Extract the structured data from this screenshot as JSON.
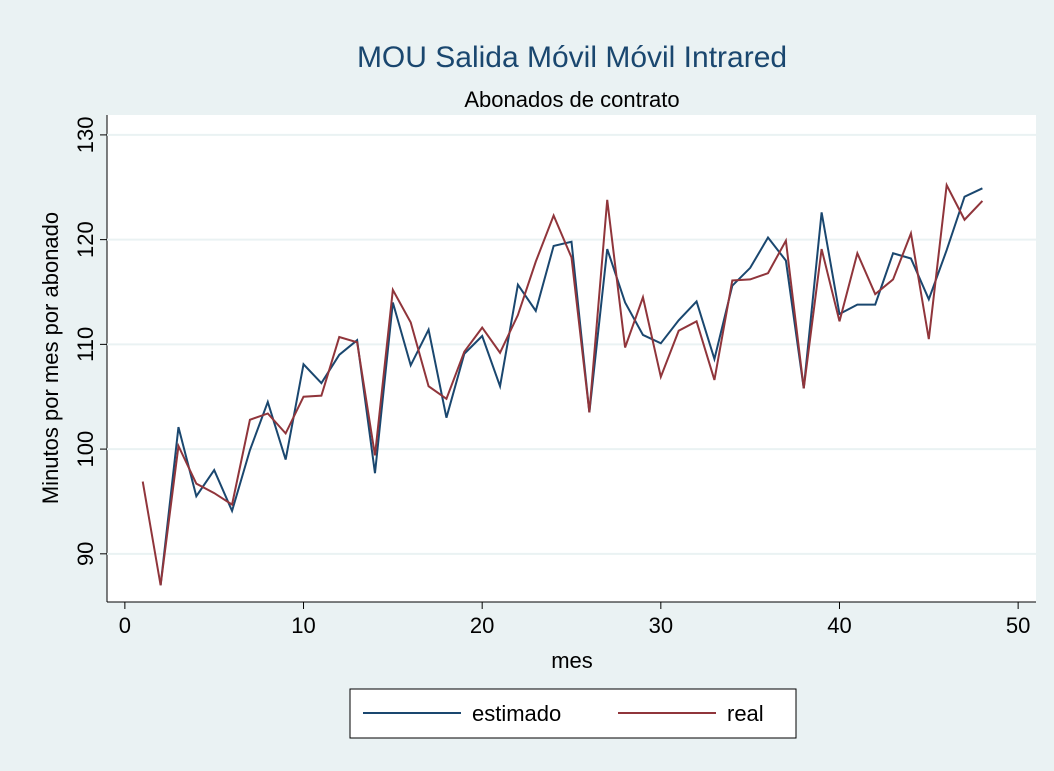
{
  "chart_data": {
    "type": "line",
    "title": "MOU Salida Móvil Móvil Intrared",
    "subtitle": "Abonados de contrato",
    "x_label": "mes",
    "y_label": "Minutos por mes por abonado",
    "x": [
      1,
      2,
      3,
      4,
      5,
      6,
      7,
      8,
      9,
      10,
      11,
      12,
      13,
      14,
      15,
      16,
      17,
      18,
      19,
      20,
      21,
      22,
      23,
      24,
      25,
      26,
      27,
      28,
      29,
      30,
      31,
      32,
      33,
      34,
      35,
      36,
      37,
      38,
      39,
      40,
      41,
      42,
      43,
      44,
      45,
      46,
      47,
      48
    ],
    "series": [
      {
        "name": "estimado",
        "color": "#1a476f",
        "values": [
          null,
          87.0,
          102.1,
          95.5,
          98.0,
          94.1,
          99.9,
          104.5,
          99.0,
          108.1,
          106.3,
          109.0,
          110.4,
          97.7,
          114.0,
          108.0,
          111.4,
          103.0,
          109.1,
          110.8,
          106.0,
          115.7,
          113.2,
          119.4,
          119.8,
          103.5,
          119.1,
          114.0,
          110.9,
          110.1,
          112.3,
          114.1,
          108.6,
          115.6,
          117.3,
          120.2,
          118.0,
          105.8,
          122.6,
          112.9,
          113.8,
          113.8,
          118.7,
          118.2,
          114.3,
          119.0,
          124.1,
          124.9
        ]
      },
      {
        "name": "real",
        "color": "#90353b",
        "values": [
          96.9,
          87.0,
          100.3,
          96.7,
          95.8,
          94.7,
          102.8,
          103.4,
          101.5,
          105.0,
          105.1,
          110.7,
          110.2,
          99.4,
          115.2,
          112.1,
          106.0,
          104.8,
          109.3,
          111.6,
          109.2,
          112.8,
          117.9,
          122.3,
          118.3,
          103.5,
          123.8,
          109.7,
          114.5,
          106.9,
          111.3,
          112.2,
          106.6,
          116.1,
          116.2,
          116.8,
          119.9,
          105.8,
          119.1,
          112.2,
          118.7,
          114.8,
          116.2,
          120.6,
          110.5,
          125.2,
          121.9,
          123.7
        ]
      }
    ],
    "xlim": [
      -1,
      51
    ],
    "xticks": [
      0,
      10,
      20,
      30,
      40,
      50
    ],
    "ylim": [
      85.4,
      131.9
    ],
    "yticks": [
      90,
      100,
      110,
      120,
      130
    ],
    "grid": true,
    "legend": "bottom"
  }
}
